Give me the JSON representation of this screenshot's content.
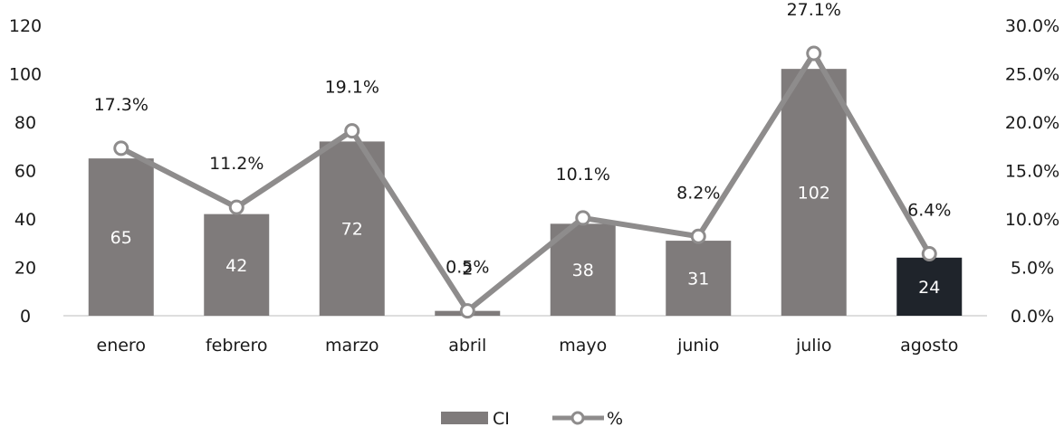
{
  "chart_data": {
    "type": "bar",
    "categories": [
      "enero",
      "febrero",
      "marzo",
      "abril",
      "mayo",
      "junio",
      "julio",
      "agosto"
    ],
    "series": [
      {
        "name": "CI",
        "type": "bar",
        "axis": "left",
        "values": [
          65,
          42,
          72,
          2,
          38,
          31,
          102,
          24
        ],
        "labels": [
          "65",
          "42",
          "72",
          "2",
          "38",
          "31",
          "102",
          "24"
        ],
        "color": "#7f7b7b",
        "highlight_color": "#1f242b",
        "highlight_index": 7
      },
      {
        "name": "%",
        "type": "line",
        "axis": "right",
        "values": [
          17.3,
          11.2,
          19.1,
          0.5,
          10.1,
          8.2,
          27.1,
          6.4
        ],
        "labels": [
          "17.3%",
          "11.2%",
          "19.1%",
          "0.5%",
          "10.1%",
          "8.2%",
          "27.1%",
          "6.4%"
        ],
        "color": "#8e8c8c"
      }
    ],
    "y_left": {
      "ylim": [
        0,
        120
      ],
      "ticks": [
        0,
        20,
        40,
        60,
        80,
        100,
        120
      ],
      "tick_labels": [
        "0",
        "20",
        "40",
        "60",
        "80",
        "100",
        "120"
      ]
    },
    "y_right": {
      "ylim": [
        0,
        30
      ],
      "ticks": [
        0,
        5,
        10,
        15,
        20,
        25,
        30
      ],
      "tick_labels": [
        "0.0%",
        "5.0%",
        "10.0%",
        "15.0%",
        "20.0%",
        "25.0%",
        "30.0%"
      ]
    },
    "grid": false,
    "legend": {
      "placement": "bottom-center",
      "entries": [
        "CI",
        "%"
      ]
    },
    "title": "",
    "xlabel": "",
    "ylabel": ""
  }
}
